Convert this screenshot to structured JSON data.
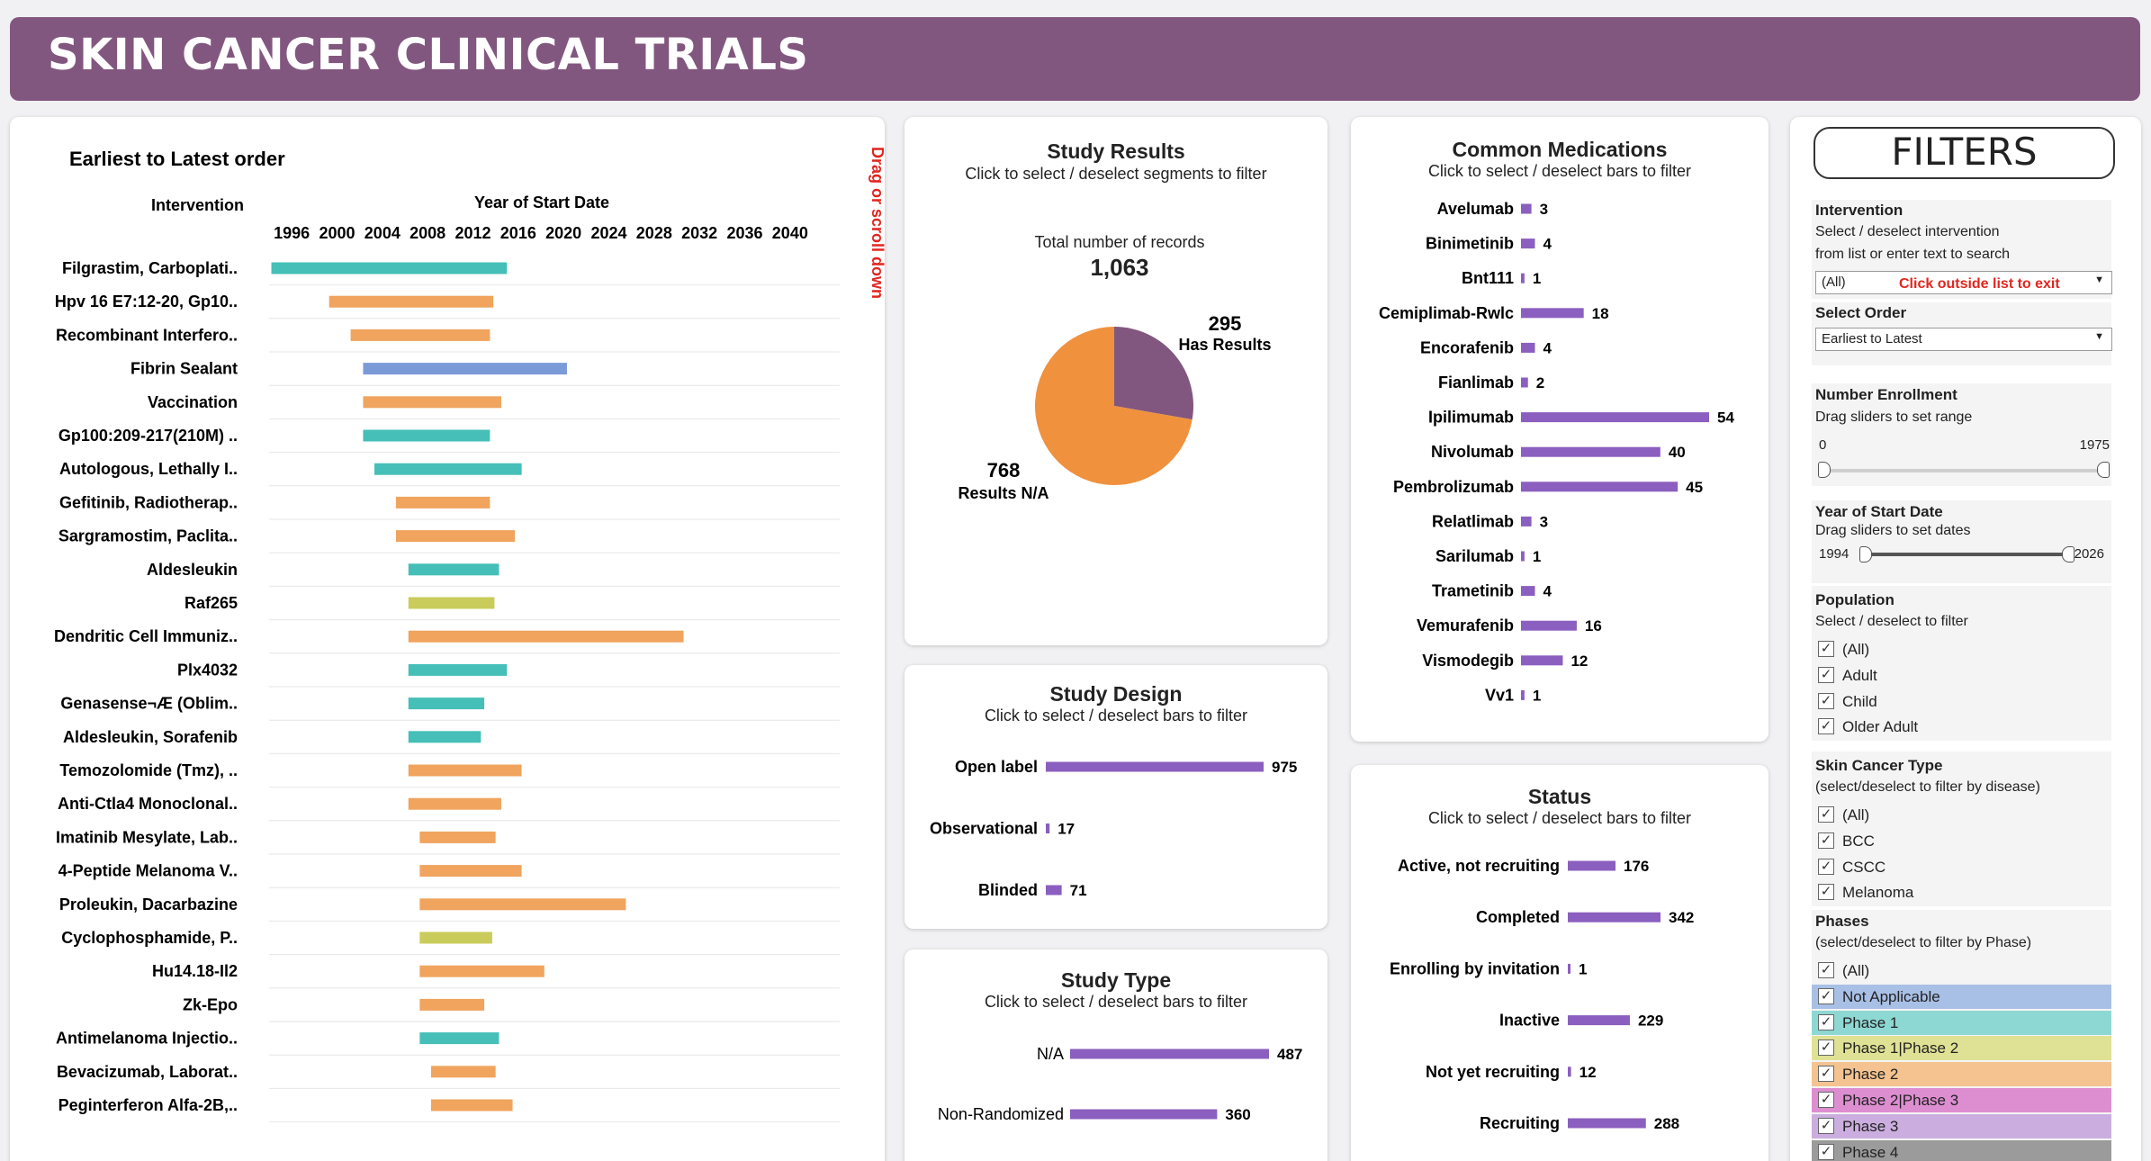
{
  "header": {
    "title": "SKIN CANCER CLINICAL TRIALS"
  },
  "timeline": {
    "title": "Earliest to Latest order",
    "intervention_header": "Intervention",
    "axis_title": "Year of Start Date",
    "scroll_hint": "Drag or scroll  down",
    "colors": {
      "teal": "#45bfb7",
      "orange": "#f0a45e",
      "blue": "#7b9ad8",
      "olive": "#c9cc5a"
    }
  },
  "study_results": {
    "title": "Study Results",
    "subtitle": "Click to select / deselect segments to filter",
    "total_label": "Total number of records",
    "total_value": "1,063",
    "labels": {
      "has_value": "295",
      "has_label": "Has Results",
      "na_value": "768",
      "na_label": "Results N/A"
    },
    "colors": {
      "has": "#82577f",
      "na": "#f0913e"
    }
  },
  "study_design": {
    "title": "Study Design",
    "subtitle": "Click to select / deselect bars to filter"
  },
  "study_type": {
    "title": "Study Type",
    "subtitle": "Click to select / deselect bars to filter"
  },
  "medications": {
    "title": "Common Medications",
    "subtitle": "Click to select / deselect bars to filter"
  },
  "status": {
    "title": "Status",
    "subtitle": "Click to select / deselect bars to filter"
  },
  "bar_color": "#8b5fbf",
  "filters": {
    "title": "FILTERS",
    "intervention": {
      "heading": "Intervention",
      "line1": "Select / deselect intervention",
      "line2": "from list or enter text to search",
      "value": "(All)",
      "note": "Click outside list to exit"
    },
    "order": {
      "heading": "Select Order",
      "value": "Earliest to Latest"
    },
    "enrollment": {
      "heading": "Number Enrollment",
      "hint": "Drag sliders to set range",
      "min": "0",
      "max": "1975",
      "low_frac": 0,
      "high_frac": 1
    },
    "year": {
      "heading": "Year of Start Date",
      "hint": "Drag sliders to set dates",
      "min": "1994",
      "max": "2026",
      "low_frac": 0,
      "high_frac": 1
    },
    "population": {
      "heading": "Population",
      "hint": "Select / deselect to filter",
      "options": [
        "(All)",
        "Adult",
        "Child",
        "Older Adult"
      ]
    },
    "cancer_type": {
      "heading": "Skin Cancer Type",
      "hint": "(select/deselect to filter by disease)",
      "options": [
        "(All)",
        "BCC",
        "CSCC",
        "Melanoma"
      ]
    },
    "phases": {
      "heading": "Phases",
      "hint": "(select/deselect to filter by Phase)",
      "options": [
        {
          "label": "(All)",
          "color": "#ffffff"
        },
        {
          "label": "Not Applicable",
          "color": "#a9c0e6"
        },
        {
          "label": "Phase 1",
          "color": "#8ed8d3"
        },
        {
          "label": "Phase 1|Phase 2",
          "color": "#dfe195"
        },
        {
          "label": "Phase 2",
          "color": "#f4c390"
        },
        {
          "label": "Phase 2|Phase 3",
          "color": "#dd8ed1"
        },
        {
          "label": "Phase 3",
          "color": "#cbaedf"
        },
        {
          "label": "Phase 4",
          "color": "#9b9b9b"
        }
      ]
    }
  },
  "chart_data": [
    {
      "type": "bar",
      "orientation": "horizontal-range",
      "title": "Earliest to Latest order",
      "xlabel": "Year of Start Date",
      "ylabel": "Intervention",
      "xlim": [
        1994,
        2042
      ],
      "x_ticks": [
        "1996",
        "2000",
        "2004",
        "2008",
        "2012",
        "2016",
        "2020",
        "2024",
        "2028",
        "2032",
        "2036",
        "2040"
      ],
      "categories": [
        "Filgrastim, Carboplati..",
        "Hpv 16 E7:12-20, Gp10..",
        "Recombinant Interfero..",
        "Fibrin Sealant",
        "Vaccination",
        "Gp100:209-217(210M) ..",
        "Autologous, Lethally I..",
        "Gefitinib, Radiotherap..",
        "Sargramostim, Paclita..",
        "Aldesleukin",
        "Raf265",
        "Dendritic Cell Immuniz..",
        "Plx4032",
        "Genasense¬Æ (Oblim..",
        "Aldesleukin, Sorafenib",
        "Temozolomide (Tmz), ..",
        "Anti-Ctla4 Monoclonal..",
        "Imatinib Mesylate, Lab..",
        "4-Peptide Melanoma V..",
        "Proleukin, Dacarbazine",
        "Cyclophosphamide, P..",
        "Hu14.18-Il2",
        "Zk-Epo",
        "Antimelanoma Injectio..",
        "Bevacizumab, Laborat..",
        "Peginterferon Alfa-2B,.."
      ],
      "start": [
        1994.2,
        1999.3,
        2001.2,
        2002.3,
        2002.3,
        2002.3,
        2003.3,
        2005.2,
        2005.2,
        2006.3,
        2006.3,
        2006.3,
        2006.3,
        2006.3,
        2006.3,
        2006.3,
        2006.3,
        2007.3,
        2007.3,
        2007.3,
        2007.3,
        2007.3,
        2007.3,
        2007.3,
        2008.3,
        2008.3
      ],
      "end": [
        2015.0,
        2013.8,
        2013.5,
        2020.3,
        2014.5,
        2013.5,
        2016.3,
        2013.5,
        2015.7,
        2014.3,
        2013.9,
        2030.6,
        2015.0,
        2013.0,
        2012.7,
        2016.3,
        2014.5,
        2014.0,
        2016.3,
        2025.5,
        2013.7,
        2018.3,
        2013.0,
        2014.3,
        2014.0,
        2015.5
      ],
      "color": [
        "teal",
        "orange",
        "orange",
        "blue",
        "orange",
        "teal",
        "teal",
        "orange",
        "orange",
        "teal",
        "olive",
        "orange",
        "teal",
        "teal",
        "teal",
        "orange",
        "orange",
        "orange",
        "orange",
        "orange",
        "olive",
        "orange",
        "orange",
        "teal",
        "orange",
        "orange"
      ]
    },
    {
      "type": "pie",
      "title": "Study Results",
      "categories": [
        "Has Results",
        "Results N/A"
      ],
      "values": [
        295,
        768
      ]
    },
    {
      "type": "bar",
      "orientation": "horizontal",
      "title": "Study Design",
      "categories": [
        "Open label",
        "Observational",
        "Blinded"
      ],
      "values": [
        975,
        17,
        71
      ]
    },
    {
      "type": "bar",
      "orientation": "horizontal",
      "title": "Study Type",
      "categories": [
        "N/A",
        "Non-Randomized"
      ],
      "values": [
        487,
        360
      ]
    },
    {
      "type": "bar",
      "orientation": "horizontal",
      "title": "Common Medications",
      "categories": [
        "Avelumab",
        "Binimetinib",
        "Bnt111",
        "Cemiplimab-Rwlc",
        "Encorafenib",
        "Fianlimab",
        "Ipilimumab",
        "Nivolumab",
        "Pembrolizumab",
        "Relatlimab",
        "Sarilumab",
        "Trametinib",
        "Vemurafenib",
        "Vismodegib",
        "Vv1"
      ],
      "values": [
        3,
        4,
        1,
        18,
        4,
        2,
        54,
        40,
        45,
        3,
        1,
        4,
        16,
        12,
        1
      ]
    },
    {
      "type": "bar",
      "orientation": "horizontal",
      "title": "Status",
      "categories": [
        "Active, not recruiting",
        "Completed",
        "Enrolling by invitation",
        "Inactive",
        "Not yet recruiting",
        "Recruiting"
      ],
      "values": [
        176,
        342,
        1,
        229,
        12,
        288
      ]
    }
  ]
}
